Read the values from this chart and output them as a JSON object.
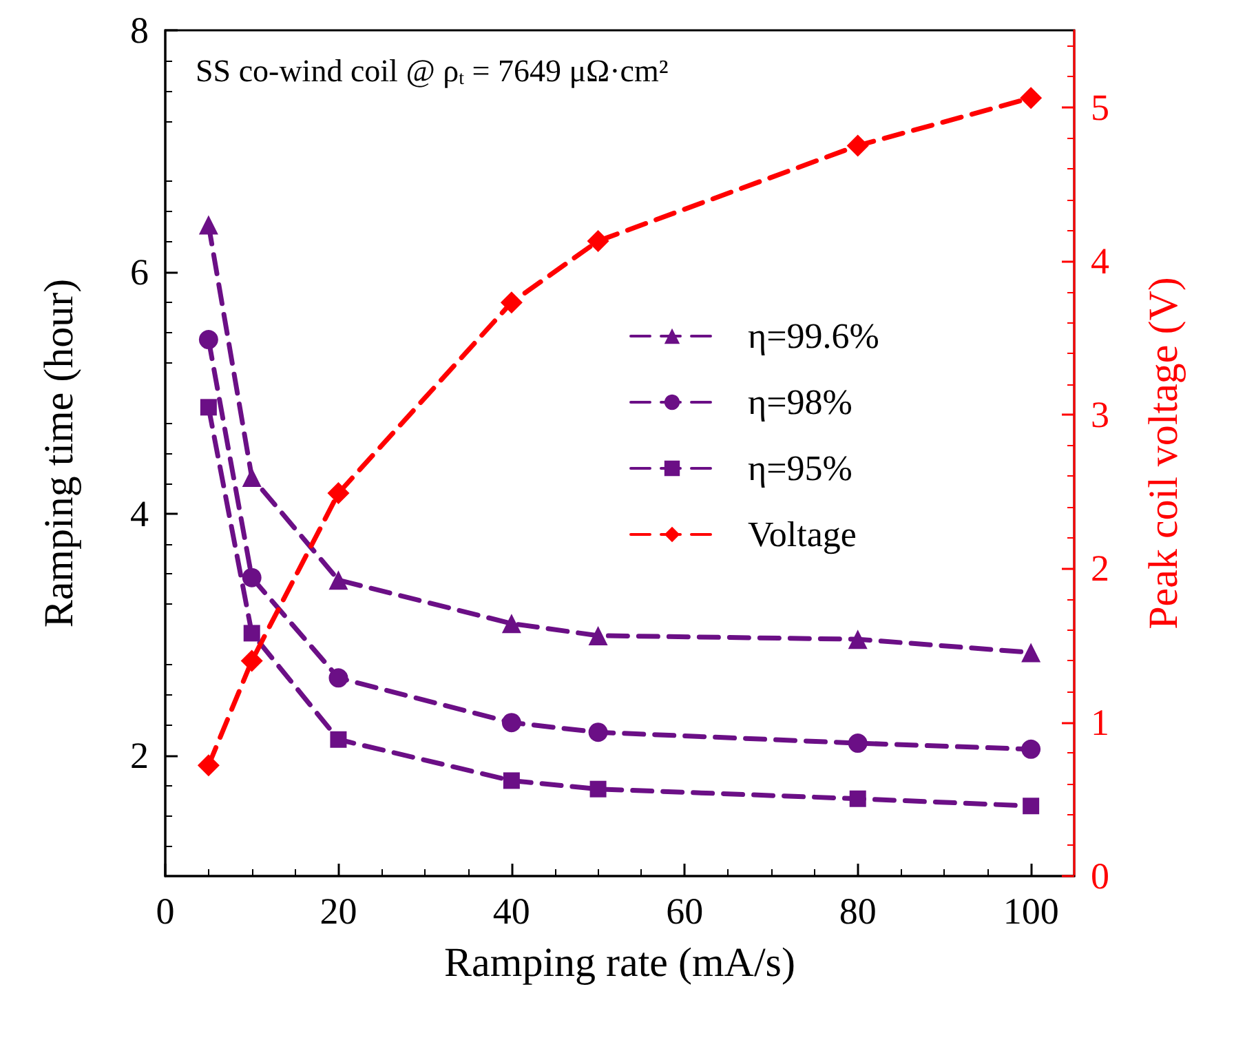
{
  "chart_data": {
    "type": "line",
    "xlabel": "Ramping rate (mA/s)",
    "ylabel": "Ramping time (hour)",
    "y2label": "Peak coil voltage (V)",
    "annotations": [
      "SS co-wind coil @ ρ$_{t}$ = 7649 μΩ·cm²"
    ],
    "x": [
      5,
      10,
      20,
      40,
      50,
      80,
      100
    ],
    "series": [
      {
        "name": "η=99.6%",
        "color": "#6b0f86",
        "marker": "triangle",
        "values": [
          6.39,
          4.3,
          3.45,
          3.09,
          2.99,
          2.96,
          2.85
        ]
      },
      {
        "name": "η=98%",
        "color": "#6b0f86",
        "marker": "circle",
        "values": [
          5.44,
          3.47,
          2.64,
          2.27,
          2.19,
          2.1,
          2.05
        ]
      },
      {
        "name": "η=95%",
        "color": "#6b0f86",
        "marker": "square",
        "values": [
          4.88,
          3.01,
          2.13,
          1.79,
          1.72,
          1.64,
          1.58
        ]
      },
      {
        "name": "Voltage",
        "color": "#ff0000",
        "marker": "diamond",
        "axis": "y2",
        "values": [
          0.72,
          1.4,
          2.49,
          3.73,
          4.13,
          4.75,
          5.06
        ]
      }
    ],
    "xlim": [
      0,
      105
    ],
    "xticks": [
      0,
      20,
      40,
      60,
      80,
      100
    ],
    "ylim": [
      1,
      8
    ],
    "yticks": [
      2,
      4,
      6,
      8
    ],
    "y2lim": [
      0,
      5.5
    ],
    "y2ticks": [
      0,
      1,
      2,
      3,
      4,
      5
    ],
    "line_style": "dashed",
    "legend": "right",
    "grid": false
  }
}
